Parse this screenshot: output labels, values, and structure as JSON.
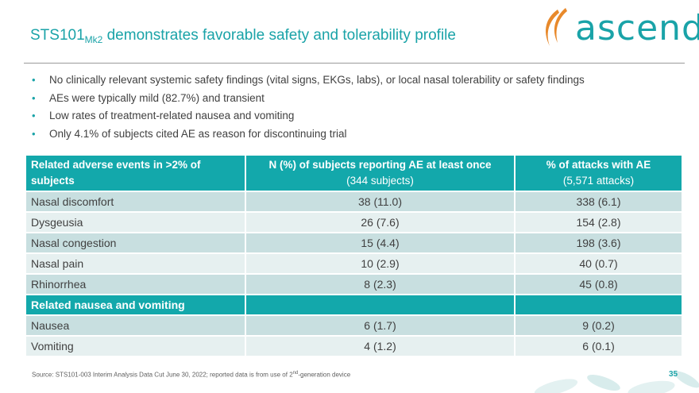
{
  "slide": {
    "title_main": "STS101",
    "title_sub": "Mk2",
    "title_rest": " demonstrates favorable safety and tolerability profile",
    "logo_text": "ascend",
    "bullets": [
      "No clinically relevant systemic safety findings (vital signs, EKGs, labs), or local nasal tolerability or safety findings",
      "AEs were typically mild (82.7%) and transient",
      "Low rates of treatment-related nausea and vomiting",
      "Only 4.1% of subjects cited AE as reason for discontinuing trial"
    ],
    "source_text": "Source:  STS101-003 Interim Analysis Data Cut June 30, 2022; reported data is from use of ",
    "source_ordinal": "2",
    "source_sup": "nd",
    "source_tail": "-generation device",
    "page_number": "35",
    "accent_color": "#1aa3a8"
  },
  "table": {
    "headers": {
      "col1": "Related adverse events in >2% of subjects",
      "col2_main": "N (%) of subjects reporting AE at least once",
      "col2_sub": "(344 subjects)",
      "col3_main": "% of attacks with AE",
      "col3_sub": "(5,571 attacks)"
    },
    "rows": [
      {
        "event": "Nasal discomfort",
        "subjects": "38 (11.0)",
        "attacks": "338 (6.1)"
      },
      {
        "event": "Dysgeusia",
        "subjects": "26 (7.6)",
        "attacks": "154 (2.8)"
      },
      {
        "event": "Nasal congestion",
        "subjects": "15 (4.4)",
        "attacks": "198 (3.6)"
      },
      {
        "event": "Nasal pain",
        "subjects": "10 (2.9)",
        "attacks": "40 (0.7)"
      },
      {
        "event": "Rhinorrhea",
        "subjects": "8 (2.3)",
        "attacks": "45 (0.8)"
      }
    ],
    "section_label": "Related nausea and vomiting",
    "section_rows": [
      {
        "event": "Nausea",
        "subjects": "6 (1.7)",
        "attacks": "9 (0.2)"
      },
      {
        "event": "Vomiting",
        "subjects": "4 (1.2)",
        "attacks": "6 (0.1)"
      }
    ]
  }
}
